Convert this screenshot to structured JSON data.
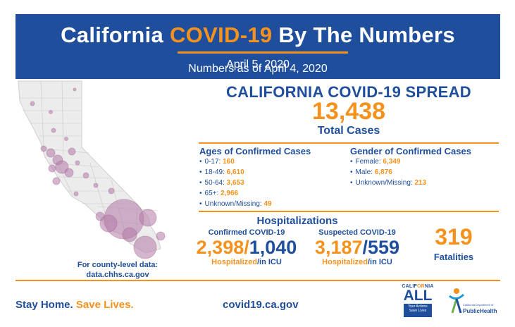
{
  "header": {
    "title_part1": "California",
    "title_accent": "COVID-19",
    "title_part2": "By The Numbers",
    "date": "April 5, 2020",
    "as_of": "Numbers as of April 4, 2020"
  },
  "spread": {
    "title": "CALIFORNIA COVID-19 SPREAD",
    "total_cases": "13,438",
    "total_label": "Total Cases"
  },
  "ages": {
    "title": "Ages of Confirmed Cases",
    "items": [
      {
        "label": "0-17:",
        "value": "160"
      },
      {
        "label": "18-49:",
        "value": "6,610"
      },
      {
        "label": "50-64:",
        "value": "3,653"
      },
      {
        "label": "65+:",
        "value": "2,966"
      },
      {
        "label": "Unknown/Missing:",
        "value": "49"
      }
    ]
  },
  "gender": {
    "title": "Gender of Confirmed Cases",
    "items": [
      {
        "label": "Female:",
        "value": "6,349"
      },
      {
        "label": "Male:",
        "value": "6,876"
      },
      {
        "label": "Unknown/Missing:",
        "value": "213"
      }
    ]
  },
  "hospitalizations": {
    "title": "Hospitalizations",
    "confirmed": {
      "label": "Confirmed COVID-19",
      "hospitalized": "2,398",
      "separator": "/",
      "icu": "1,040",
      "foot_hosp": "Hospitalized",
      "foot_icu": "/in ICU"
    },
    "suspected": {
      "label": "Suspected COVID-19",
      "hospitalized": "3,187",
      "separator": "/",
      "icu": "559",
      "foot_hosp": "Hospitalized",
      "foot_icu": "/in ICU"
    }
  },
  "fatalities": {
    "value": "319",
    "label": "Fatalities"
  },
  "county": {
    "line1": "For county-level data:",
    "line2": "data.chhs.ca.gov"
  },
  "footer": {
    "stay_home": "Stay Home.",
    "save_lives": "Save Lives.",
    "website": "covid19.ca.gov"
  },
  "logos": {
    "ca_all_top_1": "CALIF",
    "ca_all_top_accent": "OR",
    "ca_all_top_2": "NIA",
    "ca_all_main": "ALL",
    "ca_all_box_1": "Your Actions",
    "ca_all_box_2": "Save Lives",
    "cdph_dept": "California Department of",
    "cdph_name": "PublicHealth"
  },
  "colors": {
    "navy": "#1f4e9c",
    "orange": "#f5921e",
    "map_fill": "#ececec",
    "bubble": "#b57aa8"
  },
  "map": {
    "icon": "california-county-map-with-case-bubbles"
  }
}
